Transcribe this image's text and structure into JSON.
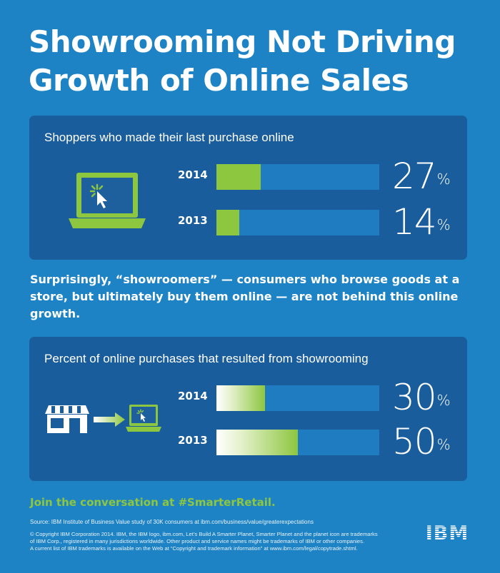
{
  "title": {
    "line1": "Showrooming Not Driving",
    "line2": "Growth of Online Sales"
  },
  "colors": {
    "background": "#1d83c5",
    "panel": "#1a5d9c",
    "bar_track": "#1f7cc0",
    "bar_fill": "#8dc63f",
    "accent_green": "#8dc63f"
  },
  "chart_data": [
    {
      "type": "bar",
      "orientation": "horizontal",
      "title": "Shoppers who made their last purchase online",
      "categories": [
        "2014",
        "2013"
      ],
      "values": [
        27,
        14
      ],
      "value_labels": [
        "27",
        "14"
      ],
      "unit": "%",
      "xlim": [
        0,
        100
      ]
    },
    {
      "type": "bar",
      "orientation": "horizontal",
      "title": "Percent of online purchases that resulted from showrooming",
      "categories": [
        "2014",
        "2013"
      ],
      "values": [
        30,
        50
      ],
      "value_labels": [
        "30",
        "50"
      ],
      "unit": "%",
      "xlim": [
        0,
        100
      ]
    }
  ],
  "middle_text": "Surprisingly, “showroomers” — consumers who browse goods at a store, but ultimately buy them online — are not behind this online growth.",
  "cta": "Join the conversation at #SmarterRetail.",
  "source": "Source: IBM Institute of Business Value study of 30K consumers at ibm.com/business/value/greaterexpectations",
  "copyright": {
    "line1": "© Copyright IBM Corporation 2014. IBM, the IBM logo, ibm.com, Let’s Build A Smarter Planet, Smarter Planet and the planet icon are trademarks",
    "line2": "of IBM Corp., registered in many jurisdictions worldwide. Other product and service names might be trademarks of IBM or other companies.",
    "line3": "A current list of IBM trademarks is available on the Web at “Copyright and trademark information” at www.ibm.com/legal/copytrade.shtml."
  },
  "logo": {
    "text": "IBM"
  },
  "icons": {
    "laptop": "laptop-icon",
    "store": "store-icon",
    "arrow": "arrow-right-icon",
    "small_laptop": "small-laptop-icon"
  }
}
